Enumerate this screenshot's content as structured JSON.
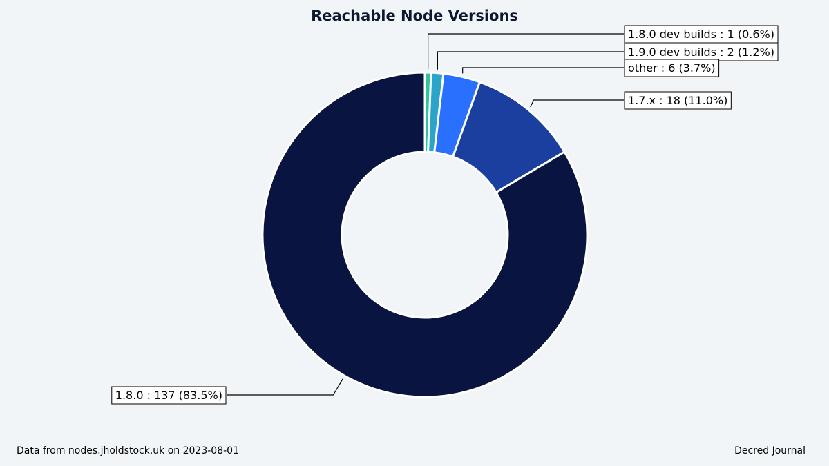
{
  "chart_data": {
    "type": "pie",
    "donut": true,
    "title": "Reachable Node Versions",
    "start_angle_deg": 90,
    "direction": "clockwise",
    "slices": [
      {
        "label": "1.8.0 dev builds : 1 (0.6%)",
        "value": 1,
        "color": "#2ec4a0"
      },
      {
        "label": "1.9.0 dev builds : 2 (1.2%)",
        "value": 2,
        "color": "#2ba4c9"
      },
      {
        "label": "other : 6 (3.7%)",
        "value": 6,
        "color": "#2970ff"
      },
      {
        "label": "1.7.x : 18 (11.0%)",
        "value": 18,
        "color": "#1b3f9e"
      },
      {
        "label": "1.8.0 : 137 (83.5%)",
        "value": 137,
        "color": "#091440"
      }
    ]
  },
  "footer": {
    "source": "Data from nodes.jholdstock.uk on 2023-08-01",
    "credit": "Decred Journal"
  }
}
